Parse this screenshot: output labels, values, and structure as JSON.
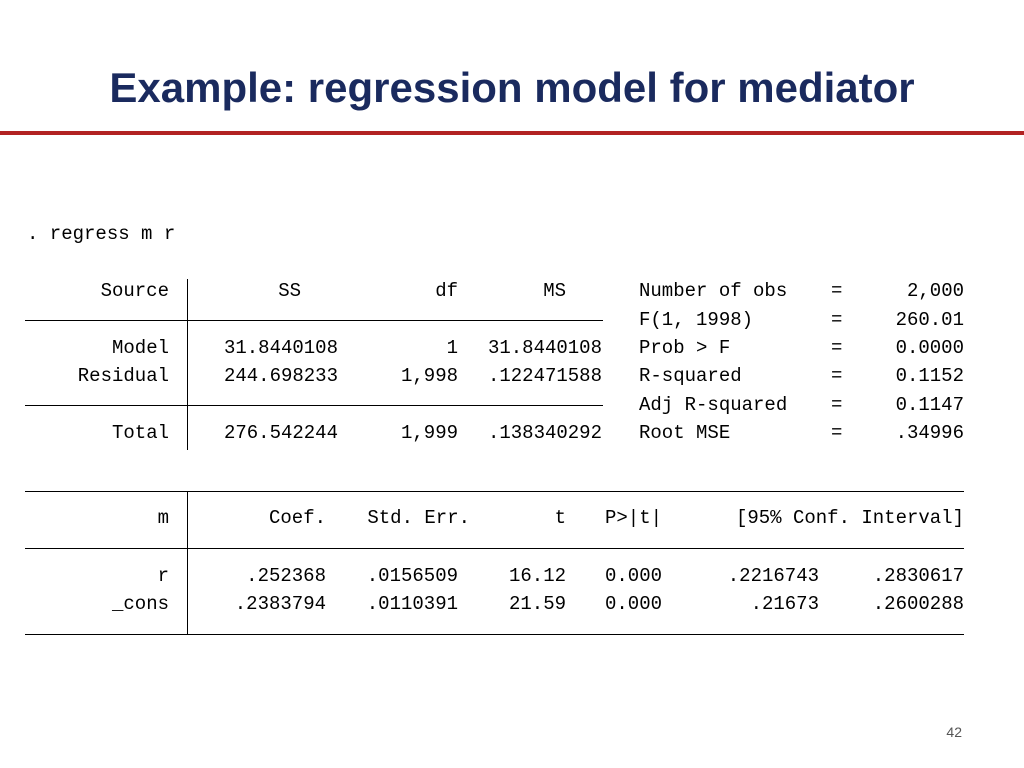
{
  "slide": {
    "title": "Example: regression model for mediator",
    "page_number": "42",
    "accent_color": "#b22222",
    "title_color": "#1a2a5e"
  },
  "command": ". regress m r",
  "anova": {
    "headers": [
      "Source",
      "SS",
      "df",
      "MS"
    ],
    "rows": [
      {
        "source": "Model",
        "ss": "31.8440108",
        "df": "1",
        "ms": "31.8440108"
      },
      {
        "source": "Residual",
        "ss": "244.698233",
        "df": "1,998",
        "ms": ".122471588"
      }
    ],
    "total": {
      "source": "Total",
      "ss": "276.542244",
      "df": "1,999",
      "ms": ".138340292"
    }
  },
  "stats": [
    {
      "label": "Number of obs",
      "eq": "=",
      "value": "2,000"
    },
    {
      "label": "F(1, 1998)",
      "eq": "=",
      "value": "260.01"
    },
    {
      "label": "Prob > F",
      "eq": "=",
      "value": "0.0000"
    },
    {
      "label": "R-squared",
      "eq": "=",
      "value": "0.1152"
    },
    {
      "label": "Adj R-squared",
      "eq": "=",
      "value": "0.1147"
    },
    {
      "label": "Root MSE",
      "eq": "=",
      "value": ".34996"
    }
  ],
  "coef": {
    "headers": [
      "m",
      "Coef.",
      "Std. Err.",
      "t",
      "P>|t|",
      "[95% Conf. Interval]"
    ],
    "rows": [
      {
        "var": "r",
        "coef": ".252368",
        "se": ".0156509",
        "t": "16.12",
        "p": "0.000",
        "lo": ".2216743",
        "hi": ".2830617"
      },
      {
        "var": "_cons",
        "coef": ".2383794",
        "se": ".0110391",
        "t": "21.59",
        "p": "0.000",
        "lo": ".21673",
        "hi": ".2600288"
      }
    ]
  }
}
